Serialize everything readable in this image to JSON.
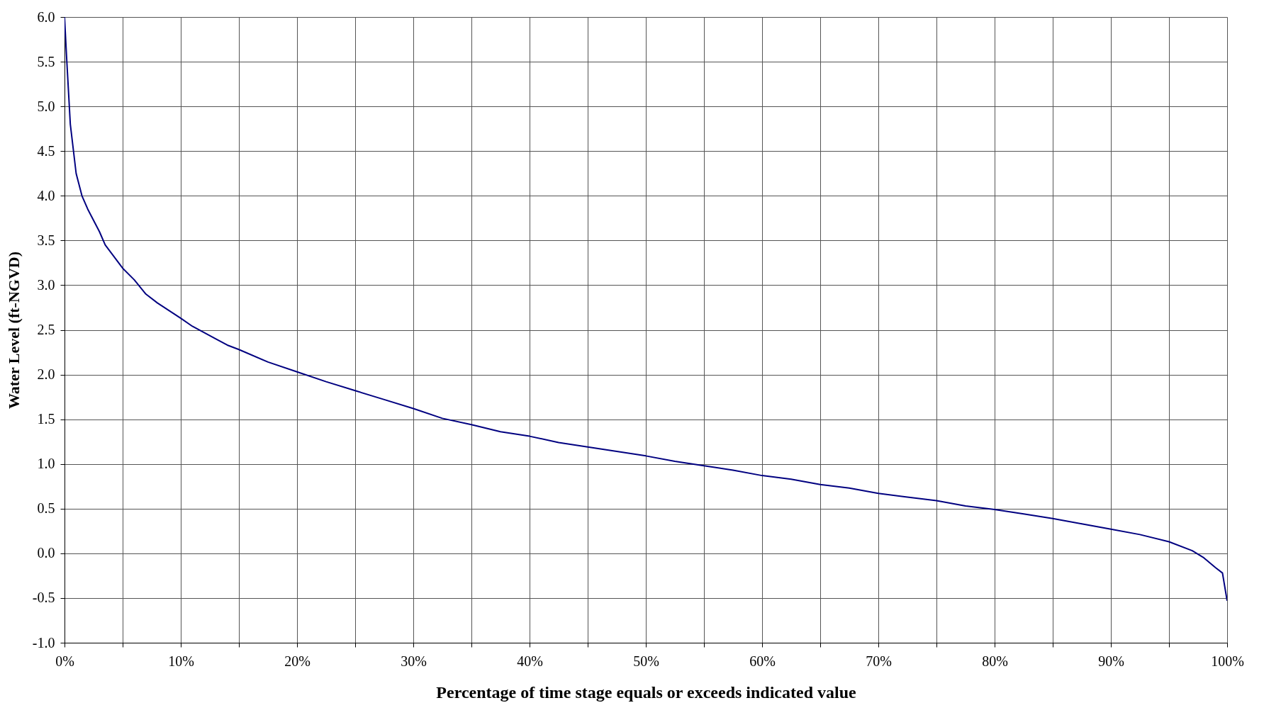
{
  "chart_data": {
    "type": "line",
    "xlabel": "Percentage of time stage equals or exceeds indicated value",
    "ylabel": "Water Level (ft-NGVD)",
    "x": [
      0,
      0.2,
      0.5,
      1,
      1.5,
      2,
      3,
      3.5,
      5,
      6,
      7,
      8,
      10,
      11,
      13,
      14,
      15,
      17.5,
      20,
      22.5,
      25,
      27.5,
      30,
      32.5,
      35,
      37.5,
      40,
      42.5,
      45,
      47.5,
      50,
      52.5,
      55,
      57.5,
      60,
      62.5,
      65,
      67.5,
      70,
      72.5,
      75,
      77.5,
      80,
      82.5,
      85,
      87.5,
      90,
      92.5,
      95,
      97,
      98,
      99,
      99.6,
      100
    ],
    "series": [
      {
        "color": "#000080",
        "values": [
          6.0,
          5.5,
          4.8,
          4.25,
          4.0,
          3.85,
          3.6,
          3.45,
          3.19,
          3.06,
          2.9,
          2.8,
          2.63,
          2.54,
          2.4,
          2.33,
          2.28,
          2.14,
          2.03,
          1.92,
          1.82,
          1.72,
          1.62,
          1.51,
          1.44,
          1.36,
          1.31,
          1.24,
          1.19,
          1.14,
          1.09,
          1.03,
          0.98,
          0.93,
          0.87,
          0.83,
          0.77,
          0.73,
          0.67,
          0.63,
          0.59,
          0.53,
          0.49,
          0.44,
          0.39,
          0.33,
          0.27,
          0.21,
          0.13,
          0.03,
          -0.05,
          -0.16,
          -0.22,
          -0.53
        ]
      }
    ],
    "xlim": [
      0,
      100
    ],
    "xticks": [
      {
        "value": 0,
        "label": "0%"
      },
      {
        "value": 5,
        "label": null
      },
      {
        "value": 10,
        "label": "10%"
      },
      {
        "value": 15,
        "label": null
      },
      {
        "value": 20,
        "label": "20%"
      },
      {
        "value": 25,
        "label": null
      },
      {
        "value": 30,
        "label": "30%"
      },
      {
        "value": 35,
        "label": null
      },
      {
        "value": 40,
        "label": "40%"
      },
      {
        "value": 45,
        "label": null
      },
      {
        "value": 50,
        "label": "50%"
      },
      {
        "value": 55,
        "label": null
      },
      {
        "value": 60,
        "label": "60%"
      },
      {
        "value": 65,
        "label": null
      },
      {
        "value": 70,
        "label": "70%"
      },
      {
        "value": 75,
        "label": null
      },
      {
        "value": 80,
        "label": "80%"
      },
      {
        "value": 85,
        "label": null
      },
      {
        "value": 90,
        "label": "90%"
      },
      {
        "value": 95,
        "label": null
      },
      {
        "value": 100,
        "label": "100%"
      }
    ],
    "ylim": [
      -1,
      6
    ],
    "yticks": [
      {
        "value": -1,
        "label": "-1.0"
      },
      {
        "value": -0.5,
        "label": "-0.5"
      },
      {
        "value": 0,
        "label": "0.0"
      },
      {
        "value": 0.5,
        "label": "0.5"
      },
      {
        "value": 1,
        "label": "1.0"
      },
      {
        "value": 1.5,
        "label": "1.5"
      },
      {
        "value": 2,
        "label": "2.0"
      },
      {
        "value": 2.5,
        "label": "2.5"
      },
      {
        "value": 3,
        "label": "3.0"
      },
      {
        "value": 3.5,
        "label": "3.5"
      },
      {
        "value": 4,
        "label": "4.0"
      },
      {
        "value": 4.5,
        "label": "4.5"
      },
      {
        "value": 5,
        "label": "5.0"
      },
      {
        "value": 5.5,
        "label": "5.5"
      },
      {
        "value": 6,
        "label": "6.0"
      }
    ],
    "grid": true,
    "marker": "none",
    "line_style": "solid"
  }
}
